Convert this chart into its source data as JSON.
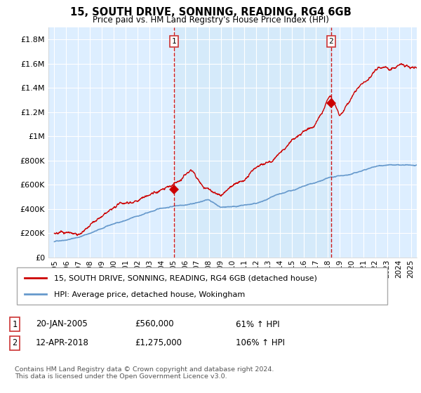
{
  "title": "15, SOUTH DRIVE, SONNING, READING, RG4 6GB",
  "subtitle": "Price paid vs. HM Land Registry's House Price Index (HPI)",
  "legend_line1": "15, SOUTH DRIVE, SONNING, READING, RG4 6GB (detached house)",
  "legend_line2": "HPI: Average price, detached house, Wokingham",
  "footer": "Contains HM Land Registry data © Crown copyright and database right 2024.\nThis data is licensed under the Open Government Licence v3.0.",
  "sale1_label": "1",
  "sale1_date": "20-JAN-2005",
  "sale1_price": "£560,000",
  "sale1_hpi": "61% ↑ HPI",
  "sale1_x": 2005.05,
  "sale1_y": 560000,
  "sale2_label": "2",
  "sale2_date": "12-APR-2018",
  "sale2_price": "£1,275,000",
  "sale2_hpi": "106% ↑ HPI",
  "sale2_x": 2018.28,
  "sale2_y": 1275000,
  "vline1_x": 2005.05,
  "vline2_x": 2018.28,
  "red_color": "#cc0000",
  "blue_color": "#6699cc",
  "bg_color": "#ddeeff",
  "shade_color": "#c8ddf0",
  "grid_color": "#ffffff",
  "ylim_min": 0,
  "ylim_max": 1900000,
  "xmin": 1994.5,
  "xmax": 2025.5,
  "yticks": [
    0,
    200000,
    400000,
    600000,
    800000,
    1000000,
    1200000,
    1400000,
    1600000,
    1800000
  ],
  "xticks": [
    1995,
    1996,
    1997,
    1998,
    1999,
    2000,
    2001,
    2002,
    2003,
    2004,
    2005,
    2006,
    2007,
    2008,
    2009,
    2010,
    2011,
    2012,
    2013,
    2014,
    2015,
    2016,
    2017,
    2018,
    2019,
    2020,
    2021,
    2022,
    2023,
    2024,
    2025
  ]
}
